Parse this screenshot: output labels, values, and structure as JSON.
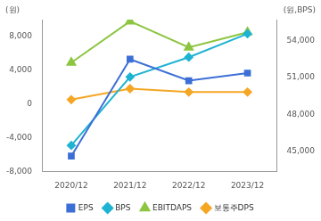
{
  "chart_data": {
    "type": "line",
    "ylabel": "(원)",
    "y2label": "(원,BPS)",
    "categories": [
      "2020/12",
      "2021/12",
      "2022/12",
      "2023/12"
    ],
    "series": [
      {
        "name": "EPS",
        "color": "#3c6fd6",
        "marker": "square",
        "values": [
          -6200,
          5300,
          2750,
          3650
        ]
      },
      {
        "name": "BPS",
        "color": "#1fb3d3",
        "marker": "diamond",
        "axis": "y2",
        "values": [
          45500,
          51050,
          52650,
          54550
        ]
      },
      {
        "name": "EBITDAPS",
        "color": "#8cc540",
        "marker": "triangle",
        "values": [
          4900,
          9800,
          6700,
          8500
        ]
      },
      {
        "name": "보통주DPS",
        "color": "#f5a623",
        "marker": "diamond",
        "values": [
          500,
          1800,
          1400,
          1400
        ]
      }
    ],
    "ylim": [
      -8000,
      10000
    ],
    "yticks": [
      {
        "value": -8000,
        "label": "-8,000"
      },
      {
        "value": -4000,
        "label": "-4,000"
      },
      0,
      {
        "value": 4000,
        "label": "4,000"
      },
      {
        "value": 8000,
        "label": "8,000"
      }
    ],
    "y2lim": [
      43400,
      55700
    ],
    "y2ticks": [
      {
        "value": 45000,
        "label": "45,000"
      },
      {
        "value": 48000,
        "label": "48,000"
      },
      {
        "value": 51000,
        "label": "51,000"
      },
      {
        "value": 54000,
        "label": "54,000"
      }
    ],
    "grid": false,
    "legend": "bottom"
  }
}
